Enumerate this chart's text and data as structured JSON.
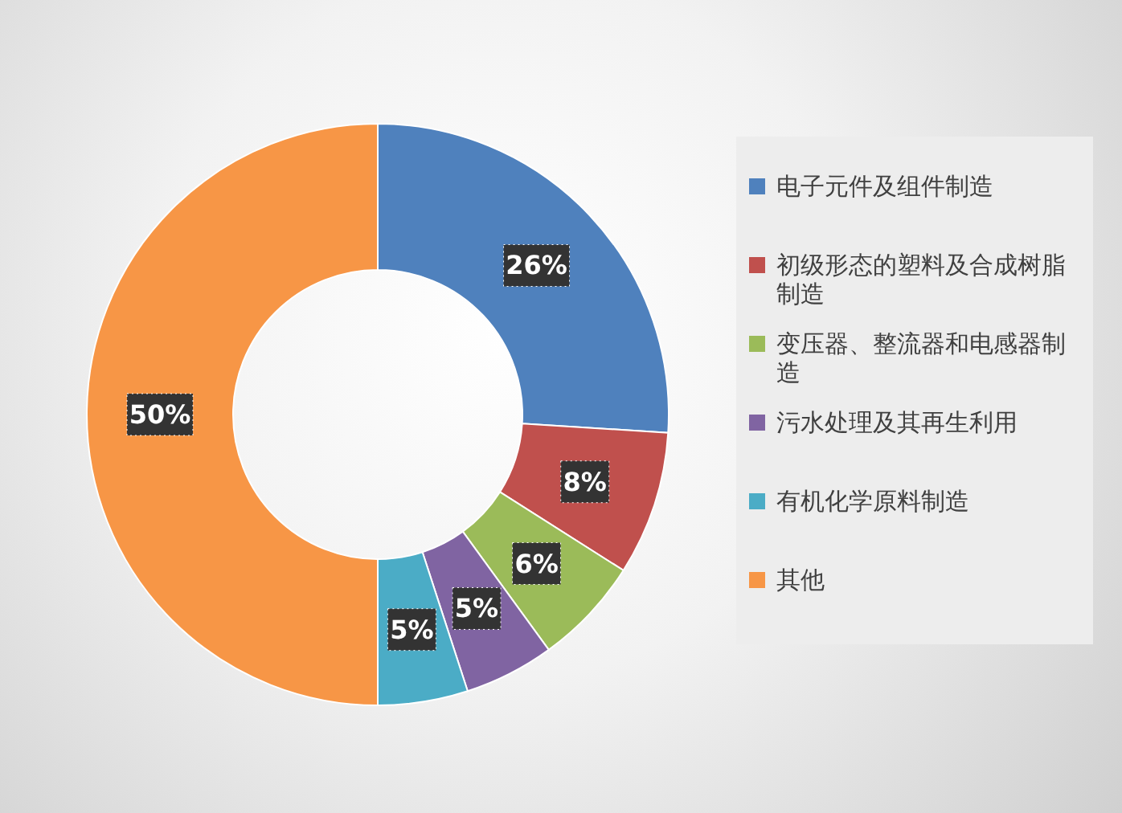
{
  "chart_data": {
    "type": "donut",
    "categories": [
      "电子元件及组件制造",
      "初级形态的塑料及合成树脂制造",
      "变压器、整流器和电感器制造",
      "污水处理及其再生利用",
      "有机化学原料制造",
      "其他"
    ],
    "values": [
      26,
      8,
      6,
      5,
      5,
      50
    ],
    "colors": [
      "#4f81bd",
      "#c0504d",
      "#9bbb59",
      "#8064a2",
      "#4bacc6",
      "#f79646"
    ],
    "value_labels": [
      "26%",
      "8%",
      "6%",
      "5%",
      "5%",
      "50%"
    ],
    "legend": "right"
  }
}
